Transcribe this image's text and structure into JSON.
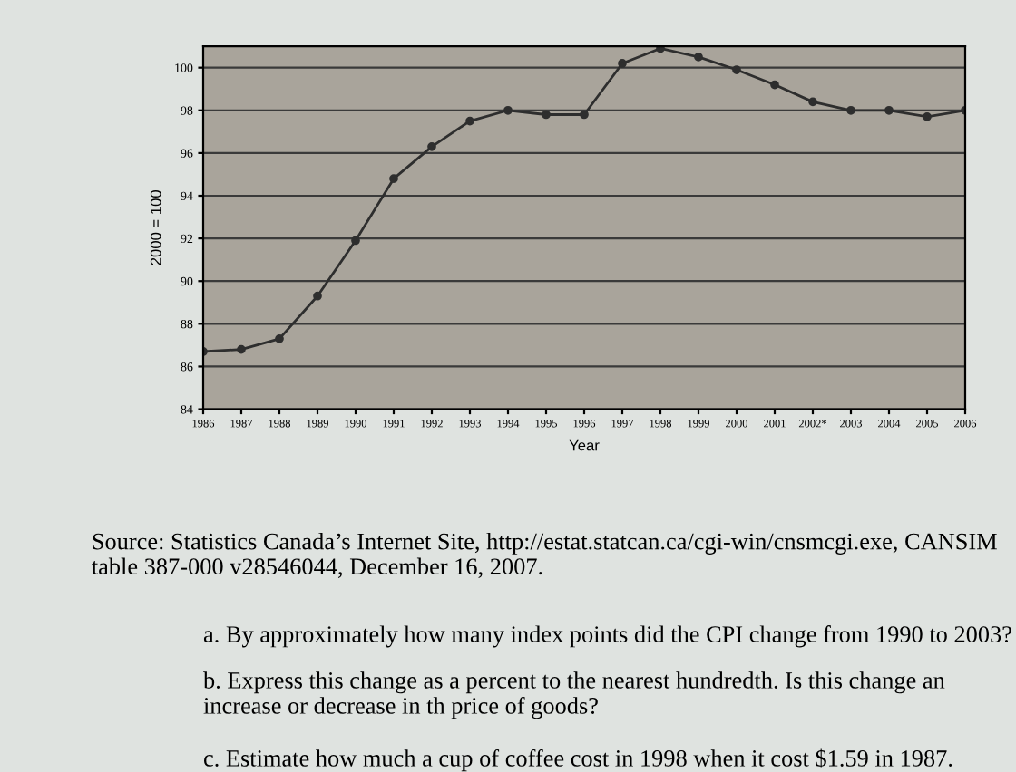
{
  "chart_data": {
    "type": "line",
    "xlabel": "Year",
    "ylabel": "2000 = 100",
    "categories": [
      "1986",
      "1987",
      "1988",
      "1989",
      "1990",
      "1991",
      "1992",
      "1993",
      "1994",
      "1995",
      "1996",
      "1997",
      "1998",
      "1999",
      "2000",
      "2001",
      "2002*",
      "2003",
      "2004",
      "2005",
      "2006"
    ],
    "series": [
      {
        "color": "#2e2e2e",
        "values": [
          86.7,
          86.8,
          87.3,
          89.3,
          91.9,
          94.8,
          96.3,
          97.5,
          98.0,
          97.8,
          97.8,
          100.2,
          100.9,
          100.5,
          99.9,
          99.2,
          98.4,
          98.0,
          98.0,
          97.7,
          98.0
        ]
      }
    ],
    "ylim": [
      84,
      101
    ],
    "yticks": [
      84,
      86,
      88,
      90,
      92,
      94,
      96,
      98,
      100
    ],
    "grid": "y",
    "marker": "circle",
    "line_style": "solid",
    "annotations": [
      "Source: Statistics Canada’s Internet Site, http://estat.statcan.ca/cgi-win/cnsmcgi.exe, CANSIM table 387-000 v28546044, December 16, 2007.",
      "a. By approximately how many index points did the CPI change from 1990 to 2003?",
      "b. Express this change as a percent to the nearest hundredth. Is this change an increase or decrease in th price of goods?",
      "c. Estimate how much a cup of coffee cost in 1998 when it cost $1.59 in 1987."
    ]
  }
}
